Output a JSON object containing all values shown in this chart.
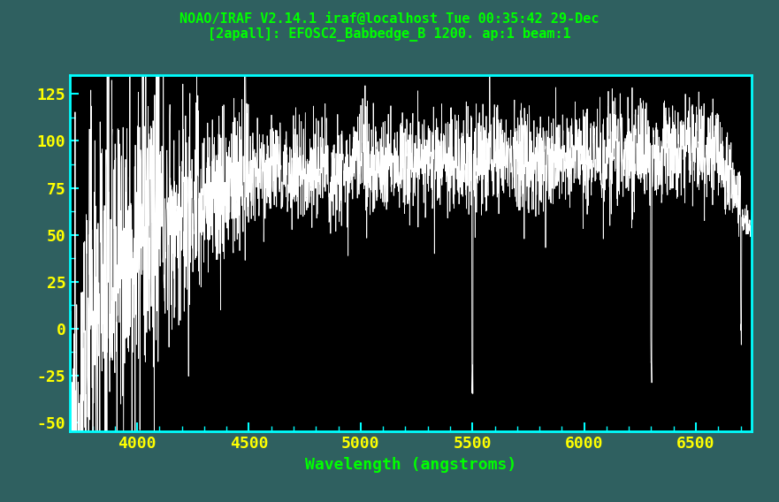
{
  "title_line1": "NOAO/IRAF V2.14.1 iraf@localhost Tue 00:35:42 29-Dec",
  "title_line2": "[2apall]: EFOSC2_Babbedge_B 1200. ap:1 beam:1",
  "xlabel": "Wavelength (angstroms)",
  "background_color": "#000000",
  "figure_bg_color": "#2F6060",
  "border_color": "#00FFFF",
  "title_color": "#00FF00",
  "tick_label_color": "#FFFF00",
  "xlabel_color": "#00FF00",
  "spectrum_color": "#FFFFFF",
  "xmin": 3700,
  "xmax": 6750,
  "ymin": -55,
  "ymax": 135,
  "yticks": [
    125,
    100,
    75,
    50,
    25,
    0,
    -25,
    -50
  ],
  "xticks": [
    4000,
    4500,
    5000,
    5500,
    6000,
    6500
  ]
}
